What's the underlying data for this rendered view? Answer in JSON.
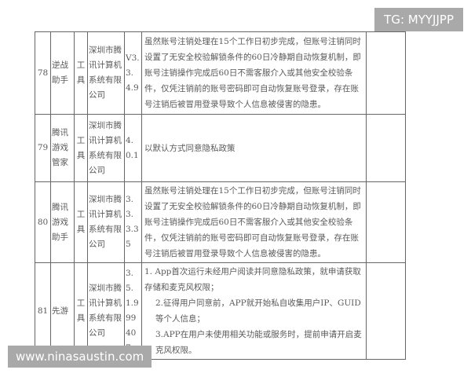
{
  "rows": [
    {
      "num": "78",
      "name": "逆战助手",
      "type": "工具",
      "company": "深圳市腾讯计算机系统有限公司",
      "version": "V3.3.4.9",
      "description": "虽然账号注销处理在15个工作日初步完成，但账号注销同时设置了无安全校验解锁条件的60日冷静期自动恢复机制，即账号注销操作完成后60日不需客服介入或其他安全校验条件，仅凭注销前的账号密码即可自动恢复账号登录，存在账号注销后被冒用登录导致个人信息被侵害的隐患。",
      "note": ""
    },
    {
      "num": "79",
      "name": "腾讯游戏管家",
      "type": "工具",
      "company": "深圳市腾讯计算机系统有限公司",
      "version": "4.0.1",
      "description": "以默认方式同意隐私政策",
      "note": ""
    },
    {
      "num": "80",
      "name": "腾讯游戏助手",
      "type": "工具",
      "company": "深圳市腾讯计算机系统有限公司",
      "version": "3.3.3.35",
      "description": "虽然账号注销处理在15个工作日初步完成，但账号注销同时设置了无安全校验解锁条件的60日冷静期自动恢复机制，即账号注销操作完成后60日不需客服介入或其他安全校验条件，仅凭注销前的账号密码即可自动恢复账号登录，存在账号注销后被冒用登录导致个人信息被侵害的隐患。",
      "note": ""
    },
    {
      "num": "81",
      "name": "先游",
      "type": "工具",
      "company": "深圳市腾讯计算机系统有限公司",
      "version": "3.5.1.999407",
      "description_lines": [
        "1. App首次运行未经用户阅读并同意隐私政策，就申请获取存储和麦克风权限；",
        "2.征得用户同意前，APP就开始私自收集用户IP、GUID等个人信息；",
        "3.APP在用户未使用相关功能或服务时，提前申请开启麦克风权限。"
      ],
      "note": ""
    }
  ],
  "watermarks": {
    "top_right": "TG: MYYJJPP",
    "bottom_left": "www.ninasaustin.com"
  }
}
